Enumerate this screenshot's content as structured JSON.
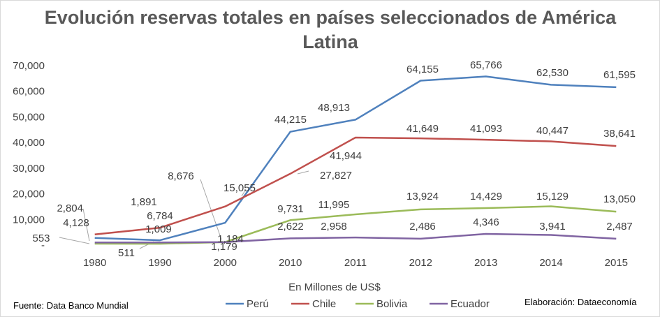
{
  "chart_data": {
    "type": "line",
    "title_line1": "Evolución reservas totales en países seleccionados de América",
    "title_line2": "Latina",
    "xlabel": "En Millones de US$",
    "ylabel": "",
    "categories": [
      "1980",
      "1990",
      "2000",
      "2010",
      "2011",
      "2012",
      "2013",
      "2014",
      "2015"
    ],
    "y_ticks": [
      "-",
      "10,000",
      "20,000",
      "30,000",
      "40,000",
      "50,000",
      "60,000",
      "70,000"
    ],
    "ylim": [
      0,
      70000
    ],
    "grid": false,
    "legend_position": "bottom",
    "series": [
      {
        "name": "Perú",
        "color": "#4f81bd",
        "values": [
          2804,
          1891,
          8676,
          44215,
          48913,
          64155,
          65766,
          62530,
          61595
        ],
        "labels": [
          "2,804",
          "1,891",
          "8,676",
          "44,215",
          "48,913",
          "64,155",
          "65,766",
          "62,530",
          "61,595"
        ]
      },
      {
        "name": "Chile",
        "color": "#c0504d",
        "values": [
          4128,
          6784,
          15055,
          27827,
          41944,
          41649,
          41093,
          40447,
          38641
        ],
        "labels": [
          "4,128",
          "6,784",
          "15,055",
          "27,827",
          "41,944",
          "41,649",
          "41,093",
          "40,447",
          "38,641"
        ]
      },
      {
        "name": "Bolivia",
        "color": "#9bbb59",
        "values": [
          553,
          511,
          1184,
          9731,
          11995,
          13924,
          14429,
          15129,
          13050
        ],
        "labels": [
          "553",
          "511",
          "1,184",
          "9,731",
          "11,995",
          "13,924",
          "14,429",
          "15,129",
          "13,050"
        ]
      },
      {
        "name": "Ecuador",
        "color": "#8064a2",
        "values": [
          1009,
          1009,
          1179,
          2622,
          2958,
          2486,
          4346,
          3941,
          2487
        ],
        "labels": [
          "",
          "1,009",
          "1,179",
          "2,622",
          "2,958",
          "2,486",
          "4,346",
          "3,941",
          "2,487"
        ]
      }
    ]
  },
  "footer": {
    "source": "Fuente: Data Banco Mundial",
    "credit": "Elaboración: Dataeconomía"
  }
}
